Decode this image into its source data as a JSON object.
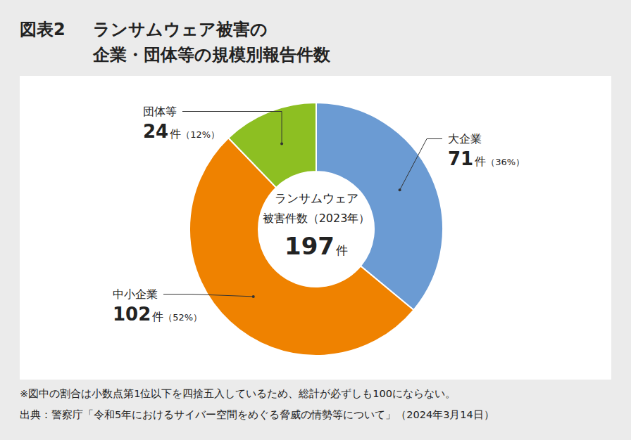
{
  "chart_data": {
    "type": "donut",
    "figure_label": "図表2",
    "title": [
      "ランサムウェア被害の",
      "企業・団体等の規模別報告件数"
    ],
    "categories": [
      "大企業",
      "中小企業",
      "団体等"
    ],
    "values": [
      71,
      102,
      24
    ],
    "unit": "件",
    "percent_labels": [
      "（36%）",
      "（52%）",
      "（12%）"
    ],
    "colors": [
      "#6b9bd3",
      "#ef8200",
      "#8dbf22"
    ],
    "data_labels": true,
    "center_text": [
      "ランサムウェア",
      "被害件数（2023年）"
    ],
    "total": 197,
    "notes": [
      "※図中の割合は小数点第1位以下を四捨五入しているため、総計が必ずしも100にならない。",
      "出典：警察庁「令和5年におけるサイバー空間をめぐる脅威の情勢等について」（2024年3月14日）"
    ]
  }
}
